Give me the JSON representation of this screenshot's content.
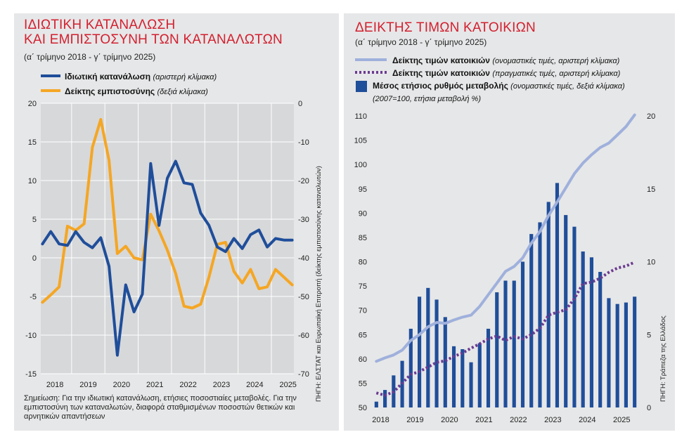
{
  "left_panel": {
    "title_line1": "ΙΔΙΩΤΙΚΗ ΚΑΤΑΝΑΛΩΣΗ",
    "title_line2": "ΚΑΙ ΕΜΠΙΣΤΟΣΥΝΗ ΤΩΝ ΚΑΤΑΝΑΛΩΤΩΝ",
    "subtitle": "(α΄ τρίμηνο 2018 - γ΄ τρίμηνο 2025)",
    "legend": [
      {
        "label": "Ιδιωτική κατανάλωση",
        "note": "(αριστερή κλίμακα)",
        "color": "#1f4e9a"
      },
      {
        "label": "Δείκτης εμπιστοσύνης",
        "note": "(δεξιά κλίμακα)",
        "color": "#f5a623"
      }
    ],
    "note_text": "Σημείωση: Για την ιδιωτική κατανάλωση, ετήσιες ποσοστιαίες μεταβολές. Για την εμπιστοσύνη των καταναλωτών, διαφορά σταθμισμένων ποσοστών θετικών και αρνητικών απαντήσεων",
    "source_text": "ΠΗΓΗ: ΕΛΣΤΑΤ και Ευρωπαϊκή Επιτροπή (δείκτης εμπιστοσύνης καταναλωτών)"
  },
  "right_panel": {
    "title": "ΔΕΙΚΤΗΣ ΤΙΜΩΝ ΚΑΤΟΙΚΙΩΝ",
    "subtitle": "(α΄ τρίμηνο 2018 - γ΄ τρίμηνο 2025)",
    "legend": [
      {
        "label": "Δείκτης τιμών κατοικιών",
        "note": "(ονομαστικές τιμές, αριστερή κλίμακα)",
        "color": "#9fb0dc"
      },
      {
        "label": "Δείκτης τιμών κατοικιών",
        "note": "(πραγματικές τιμές, αριστερή κλίμακα)",
        "color": "#6b3a91"
      },
      {
        "label": "Μέσος ετήσιος ρυθμός μεταβολής",
        "note": "(ονομαστικές τιμές, δεξιά κλίμακα)",
        "note2": "(2007=100, ετήσια μεταβολή %)",
        "color": "#1f4e9a"
      }
    ],
    "source_text": "ΠΗΓΗ: Τράπεζα της Ελλάδος"
  },
  "chart_data": [
    {
      "type": "line",
      "x_labels": [
        "2018",
        "2019",
        "2020",
        "2021",
        "2022",
        "2023",
        "2024",
        "2025"
      ],
      "y_left_ticks": [
        "20",
        "15",
        "10",
        "5",
        "0",
        "-5",
        "-10",
        "-15"
      ],
      "y_right_ticks": [
        "0",
        "-10",
        "-20",
        "-30",
        "-40",
        "-50",
        "-60",
        "-70"
      ],
      "ylim_left": [
        -15,
        20
      ],
      "ylim_right": [
        -70,
        0
      ],
      "grid": true,
      "series": [
        {
          "name": "Ιδιωτική κατανάλωση",
          "axis": "left",
          "color": "#1f4e9a",
          "values": [
            1.8,
            3.4,
            1.8,
            1.6,
            3.4,
            2.0,
            1.3,
            2.6,
            -1.1,
            -12.6,
            -3.5,
            -7.0,
            -4.7,
            12.2,
            4.2,
            10.3,
            12.5,
            9.7,
            9.5,
            5.8,
            4.2,
            1.4,
            0.8,
            2.5,
            1.2,
            3.0,
            3.6,
            1.4,
            2.5,
            2.3,
            2.3
          ]
        },
        {
          "name": "Δείκτης εμπιστοσύνης",
          "axis": "right",
          "color": "#f5a623",
          "values": [
            -51.5,
            -49.6,
            -47.5,
            -31.8,
            -32.9,
            -31.2,
            -11.4,
            -4.2,
            -14.8,
            -38.9,
            -37.0,
            -40.0,
            -40.5,
            -28.7,
            -33.0,
            -38.0,
            -44.0,
            -52.5,
            -53.0,
            -52.0,
            -45.0,
            -36.5,
            -36.0,
            -43.5,
            -46.5,
            -43.0,
            -48.0,
            -47.5,
            -43.0,
            -45.0,
            -47.0
          ]
        }
      ]
    },
    {
      "type": "bar+line",
      "x_labels": [
        "2018",
        "2019",
        "2020",
        "2021",
        "2022",
        "2023",
        "2024",
        "2025"
      ],
      "y_left_ticks": [
        "110",
        "105",
        "100",
        "95",
        "90",
        "85",
        "80",
        "75",
        "70",
        "65",
        "60",
        "55",
        "50"
      ],
      "y_right_ticks": [
        "20",
        "15",
        "10",
        "5",
        "0"
      ],
      "ylim_left": [
        50,
        110
      ],
      "ylim_right": [
        0,
        20
      ],
      "grid": false,
      "bars": {
        "name": "Μέσος ετήσιος ρυθμός μεταβολής",
        "axis": "right",
        "color": "#1f4e9a",
        "values": [
          0.4,
          1.2,
          2.2,
          3.2,
          5.4,
          7.6,
          8.2,
          7.4,
          6.2,
          4.2,
          4.0,
          3.1,
          4.4,
          5.4,
          7.9,
          8.7,
          8.7,
          10.0,
          11.9,
          12.7,
          14.1,
          15.4,
          13.2,
          12.4,
          10.7,
          10.3,
          9.3,
          7.5,
          7.1,
          7.2,
          7.6
        ]
      },
      "series": [
        {
          "name": "Δείκτης τιμών κατοικιών (ονομαστικές τιμές)",
          "axis": "left",
          "color": "#9fb0dc",
          "values": [
            59.5,
            60.2,
            60.8,
            61.8,
            63.8,
            65.0,
            66.6,
            67.5,
            67.3,
            68.0,
            68.6,
            69.0,
            70.8,
            73.2,
            75.6,
            78.0,
            79.0,
            80.8,
            83.8,
            86.2,
            89.5,
            92.3,
            95.2,
            98.1,
            100.3,
            102.0,
            103.5,
            104.4,
            106.1,
            107.8,
            110.2
          ]
        },
        {
          "name": "Δείκτης τιμών κατοικιών (πραγματικές τιμές)",
          "axis": "left",
          "color": "#6b3a91",
          "values": [
            53.0,
            52.5,
            53.2,
            55.0,
            56.8,
            57.4,
            58.3,
            59.3,
            59.6,
            60.5,
            61.2,
            62.2,
            63.1,
            64.1,
            64.7,
            63.8,
            64.6,
            64.1,
            65.0,
            66.3,
            69.0,
            69.6,
            70.1,
            72.4,
            75.5,
            75.8,
            76.6,
            77.8,
            78.7,
            79.1,
            79.9
          ]
        }
      ]
    }
  ]
}
